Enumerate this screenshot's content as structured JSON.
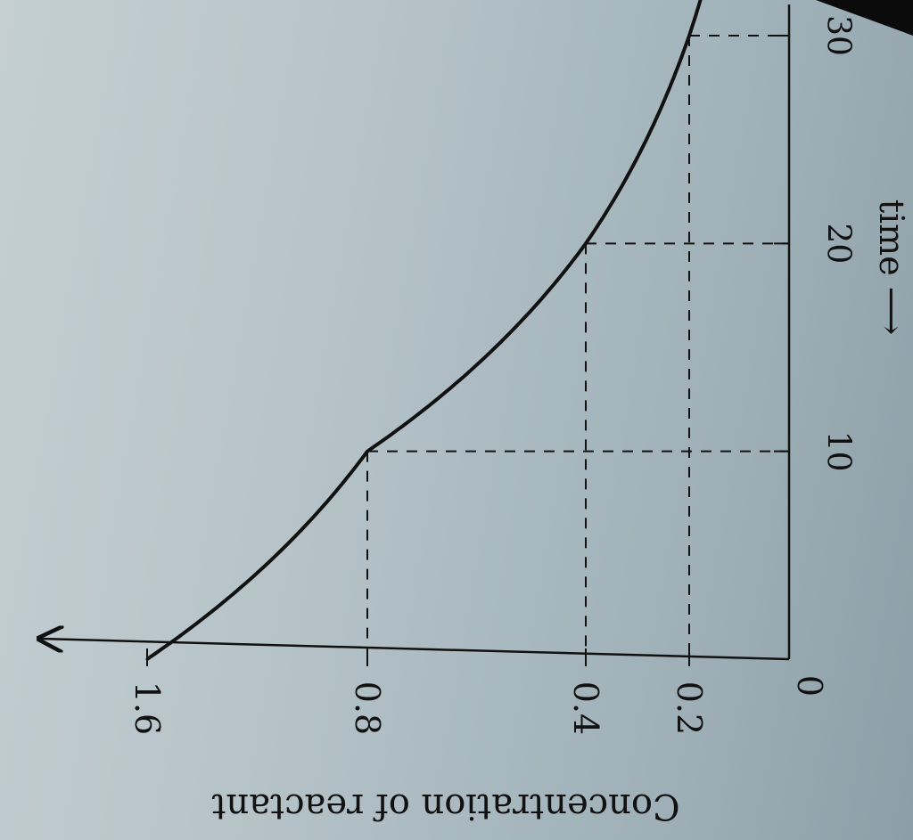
{
  "chart_data": {
    "type": "line",
    "x": [
      0,
      10,
      20,
      30
    ],
    "series": [
      {
        "values": [
          1.6,
          0.8,
          0.4,
          0.2
        ]
      }
    ],
    "xlabel": "time ⟶",
    "ylabel": "Concentration of reactant",
    "x_ticks": [
      "10",
      "20",
      "30"
    ],
    "y_ticks": [
      "1.6",
      "0.8",
      "0.4",
      "0.2"
    ],
    "origin_label": "0",
    "xlim": [
      0,
      30
    ],
    "ylim": [
      0,
      1.6
    ],
    "y_scale": "linear",
    "grid": false,
    "orientation": "rotated 90° clockwise",
    "guide_lines": "dashed lines from each curve point to both axes",
    "line_color": "#111111",
    "background_color": "#b4c2c8"
  }
}
